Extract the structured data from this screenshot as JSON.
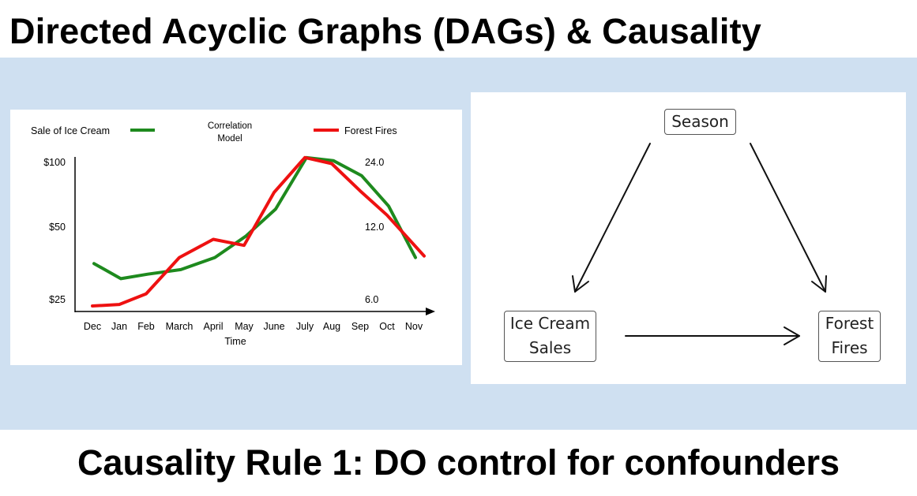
{
  "title": "Directed Acyclic Graphs (DAGs) & Causality",
  "footer": "Causality Rule 1: DO control for confounders",
  "colors": {
    "band": "#cfe0f1",
    "ice_cream": "#1e8a1e",
    "fires": "#ee1111"
  },
  "chart_data": {
    "type": "line",
    "title": "Correlation Model",
    "title_lines": [
      "Correlation",
      "Model"
    ],
    "xlabel": "Time",
    "categories": [
      "Dec",
      "Jan",
      "Feb",
      "March",
      "April",
      "May",
      "June",
      "July",
      "Aug",
      "Sep",
      "Oct",
      "Nov"
    ],
    "left_axis": {
      "ticks": [
        "$100",
        "$50",
        "$25"
      ],
      "ylim": [
        0,
        100
      ]
    },
    "right_axis": {
      "ticks": [
        "24.0",
        "12.0",
        "6.0"
      ]
    },
    "legend": {
      "placement": "top"
    },
    "series": [
      {
        "name": "Sale of Ice Cream",
        "color": "#1e8a1e",
        "values": [
          28,
          18,
          21,
          24,
          32,
          46,
          64,
          98,
          96,
          86,
          66,
          32
        ]
      },
      {
        "name": "Forest Fires",
        "color": "#ee1111",
        "values": [
          0,
          1,
          8,
          32,
          44,
          40,
          75,
          98,
          94,
          76,
          60,
          33
        ]
      }
    ]
  },
  "dag": {
    "nodes": {
      "season": "Season",
      "ice_cream": [
        "Ice Cream",
        "Sales"
      ],
      "fires": [
        "Forest",
        "Fires"
      ]
    },
    "edges": [
      [
        "season",
        "ice_cream"
      ],
      [
        "season",
        "fires"
      ],
      [
        "ice_cream",
        "fires"
      ]
    ]
  }
}
